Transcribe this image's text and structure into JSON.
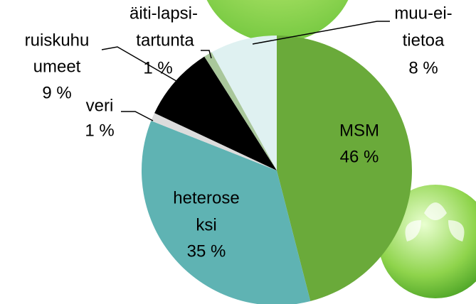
{
  "chart_data": {
    "type": "pie",
    "categories": [
      [
        "MSM"
      ],
      [
        "heterose",
        "ksi"
      ],
      [
        "veri"
      ],
      [
        "ruiskuhu",
        "umeet"
      ],
      [
        "äiti-lapsi-",
        "tartunta"
      ],
      [
        "muu-ei-",
        "tietoa"
      ]
    ],
    "values": [
      46,
      35,
      1,
      9,
      1,
      8
    ],
    "value_labels": [
      "46 %",
      "35 %",
      "1 %",
      "9 %",
      "1 %",
      "8 %"
    ],
    "colors": [
      "#6aaa3a",
      "#5fb3b3",
      "#dcdcdc",
      "#000000",
      "#a9c79b",
      "#dff1f1"
    ]
  }
}
